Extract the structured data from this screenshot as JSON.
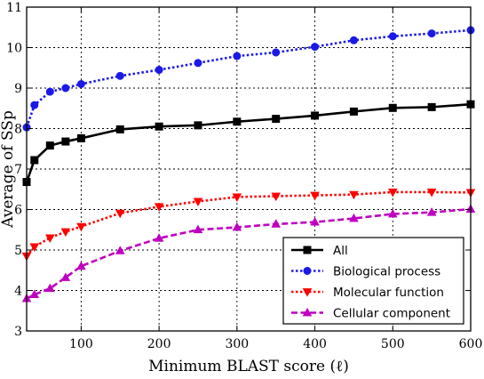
{
  "chart_data": {
    "type": "line",
    "xlabel": "Minimum BLAST score (ℓ)",
    "ylabel": "Average of SSp",
    "xlim": [
      30,
      600
    ],
    "ylim": [
      3,
      11
    ],
    "xticks": [
      100,
      200,
      300,
      400,
      500,
      600
    ],
    "yticks": [
      3,
      4,
      5,
      6,
      7,
      8,
      9,
      10,
      11
    ],
    "grid": true,
    "legend_position": "bottom-right",
    "x": [
      30,
      40,
      60,
      80,
      100,
      150,
      200,
      250,
      300,
      350,
      400,
      450,
      500,
      550,
      600
    ],
    "series": [
      {
        "name": "All",
        "color": "#000000",
        "marker": "square",
        "dash": "solid",
        "values": [
          6.68,
          7.22,
          7.58,
          7.68,
          7.76,
          7.98,
          8.05,
          8.08,
          8.17,
          8.24,
          8.32,
          8.42,
          8.51,
          8.53,
          8.6
        ]
      },
      {
        "name": "Biological process",
        "color": "#1a1ae6",
        "marker": "circle",
        "dash": "dotted",
        "values": [
          8.03,
          8.58,
          8.91,
          9.0,
          9.1,
          9.3,
          9.45,
          9.62,
          9.79,
          9.88,
          10.02,
          10.18,
          10.28,
          10.35,
          10.43
        ]
      },
      {
        "name": "Molecular function",
        "color": "#ff0000",
        "marker": "triangle-down",
        "dash": "dotted",
        "values": [
          4.85,
          5.08,
          5.3,
          5.45,
          5.58,
          5.91,
          6.07,
          6.2,
          6.31,
          6.33,
          6.35,
          6.37,
          6.43,
          6.43,
          6.42
        ]
      },
      {
        "name": "Cellular component",
        "color": "#bf00bf",
        "marker": "triangle-up",
        "dash": "dashed",
        "values": [
          3.8,
          3.9,
          4.05,
          4.32,
          4.6,
          4.98,
          5.29,
          5.5,
          5.56,
          5.64,
          5.69,
          5.78,
          5.89,
          5.93,
          6.01
        ]
      }
    ]
  }
}
